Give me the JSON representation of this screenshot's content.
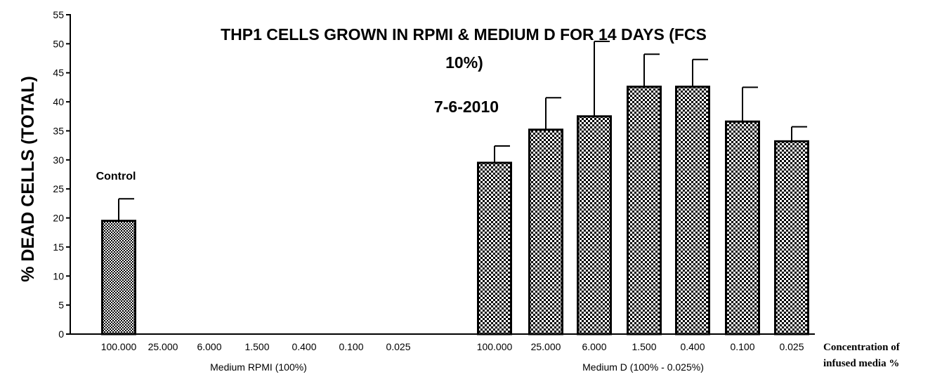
{
  "chart_data": {
    "type": "bar",
    "title": "THP1 CELLS GROWN IN RPMI & MEDIUM D FOR 14 DAYS (FCS",
    "title_line2": "10%)",
    "subtitle": "7-6-2010",
    "ylabel": "% DEAD CELLS (TOTAL)",
    "xlabel_line1": "Concentration of",
    "xlabel_line2": "infused media %",
    "ylim": [
      0,
      55
    ],
    "yticks": [
      "0",
      "5",
      "10",
      "15",
      "20",
      "25",
      "30",
      "35",
      "40",
      "45",
      "50",
      "55"
    ],
    "grid": false,
    "annotation": "Control",
    "groups": [
      {
        "name": "Medium RPMI (100%)",
        "categories": [
          "100.000",
          "25.000",
          "6.000",
          "1.500",
          "0.400",
          "0.100",
          "0.025"
        ],
        "values": [
          19.5,
          null,
          null,
          null,
          null,
          null,
          null
        ],
        "errors": [
          3.8,
          null,
          null,
          null,
          null,
          null,
          null
        ]
      },
      {
        "name": "Medium D (100% - 0.025%)",
        "categories": [
          "100.000",
          "25.000",
          "6.000",
          "1.500",
          "0.400",
          "0.100",
          "0.025"
        ],
        "values": [
          29.5,
          35.2,
          37.5,
          42.6,
          42.6,
          36.6,
          33.2
        ],
        "errors": [
          2.9,
          5.5,
          12.9,
          5.6,
          4.7,
          5.9,
          2.5
        ]
      }
    ]
  }
}
